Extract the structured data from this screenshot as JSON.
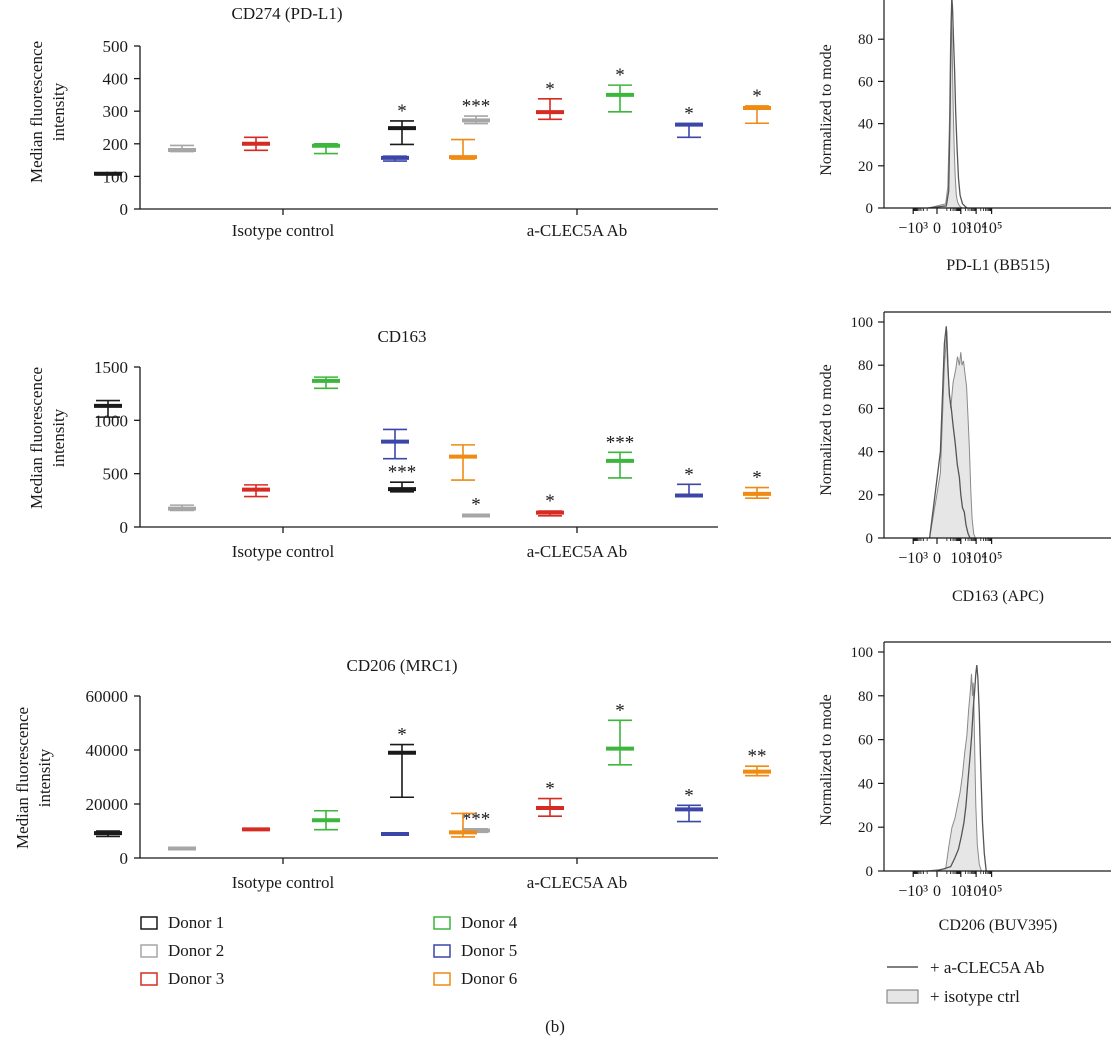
{
  "caption": "(b)",
  "palette": {
    "Donor 1": "#1a1a1a",
    "Donor 2": "#a6a6a6",
    "Donor 3": "#d62b22",
    "Donor 4": "#3cb63c",
    "Donor 5": "#3c46a8",
    "Donor 6": "#ef8a12",
    "histogram_line": "#555555",
    "histogram_fill": "#e6e6e6"
  },
  "box_legend": [
    "Donor 1",
    "Donor 2",
    "Donor 3",
    "Donor 4",
    "Donor 5",
    "Donor 6"
  ],
  "hist_legend": {
    "line": "+ a-CLEC5A Ab",
    "fill": "+ isotype ctrl"
  },
  "chart_data": [
    {
      "id": "cd274",
      "type": "box",
      "title": "CD274 (PD-L1)",
      "ylabel": [
        "Median fluorescence",
        "intensity"
      ],
      "categories": [
        "Isotype control",
        "a-CLEC5A Ab"
      ],
      "ylim": [
        0,
        500
      ],
      "yticks": [
        0,
        100,
        200,
        300,
        400,
        500
      ],
      "ytick_labels": [
        "0",
        "100",
        "200",
        "300",
        "400",
        "500"
      ],
      "series": [
        {
          "name": "Donor 1",
          "values": [
            {
              "min": 105,
              "median": 108,
              "max": 111,
              "sig": ""
            },
            {
              "min": 198,
              "median": 248,
              "max": 270,
              "sig": "*"
            }
          ]
        },
        {
          "name": "Donor 2",
          "values": [
            {
              "min": 176,
              "median": 181,
              "max": 195,
              "sig": ""
            },
            {
              "min": 262,
              "median": 272,
              "max": 285,
              "sig": "***"
            }
          ]
        },
        {
          "name": "Donor 3",
          "values": [
            {
              "min": 180,
              "median": 200,
              "max": 220,
              "sig": ""
            },
            {
              "min": 275,
              "median": 297,
              "max": 338,
              "sig": "*"
            }
          ]
        },
        {
          "name": "Donor 4",
          "values": [
            {
              "min": 170,
              "median": 194,
              "max": 200,
              "sig": ""
            },
            {
              "min": 298,
              "median": 350,
              "max": 380,
              "sig": "*"
            }
          ]
        },
        {
          "name": "Donor 5",
          "values": [
            {
              "min": 147,
              "median": 157,
              "max": 162,
              "sig": ""
            },
            {
              "min": 220,
              "median": 259,
              "max": 262,
              "sig": "*"
            }
          ]
        },
        {
          "name": "Donor 6",
          "values": [
            {
              "min": 153,
              "median": 159,
              "max": 213,
              "sig": ""
            },
            {
              "min": 263,
              "median": 310,
              "max": 316,
              "sig": "*"
            }
          ]
        }
      ]
    },
    {
      "id": "cd163",
      "type": "box",
      "title": "CD163",
      "ylabel": [
        "Median fluorescence",
        "intensity"
      ],
      "categories": [
        "Isotype control",
        "a-CLEC5A Ab"
      ],
      "ylim": [
        0,
        1500
      ],
      "yticks": [
        0,
        500,
        1000,
        1500
      ],
      "ytick_labels": [
        "0",
        "500",
        "1000",
        "1500"
      ],
      "series": [
        {
          "name": "Donor 1",
          "values": [
            {
              "min": 1030,
              "median": 1135,
              "max": 1185,
              "sig": ""
            },
            {
              "min": 330,
              "median": 355,
              "max": 420,
              "sig": "***"
            }
          ]
        },
        {
          "name": "Donor 2",
          "values": [
            {
              "min": 155,
              "median": 172,
              "max": 205,
              "sig": ""
            },
            {
              "min": 100,
              "median": 108,
              "max": 115,
              "sig": "*"
            }
          ]
        },
        {
          "name": "Donor 3",
          "values": [
            {
              "min": 285,
              "median": 350,
              "max": 395,
              "sig": ""
            },
            {
              "min": 105,
              "median": 135,
              "max": 150,
              "sig": "*"
            }
          ]
        },
        {
          "name": "Donor 4",
          "values": [
            {
              "min": 1300,
              "median": 1370,
              "max": 1405,
              "sig": ""
            },
            {
              "min": 460,
              "median": 620,
              "max": 700,
              "sig": "***"
            }
          ]
        },
        {
          "name": "Donor 5",
          "values": [
            {
              "min": 640,
              "median": 800,
              "max": 915,
              "sig": ""
            },
            {
              "min": 290,
              "median": 295,
              "max": 400,
              "sig": "*"
            }
          ]
        },
        {
          "name": "Donor 6",
          "values": [
            {
              "min": 440,
              "median": 660,
              "max": 770,
              "sig": ""
            },
            {
              "min": 270,
              "median": 310,
              "max": 370,
              "sig": "*"
            }
          ]
        }
      ]
    },
    {
      "id": "cd206",
      "type": "box",
      "title": "CD206 (MRC1)",
      "ylabel": [
        "Median fluorescence",
        "intensity"
      ],
      "categories": [
        "Isotype control",
        "a-CLEC5A Ab"
      ],
      "ylim": [
        0,
        60000
      ],
      "yticks": [
        0,
        20000,
        40000,
        60000
      ],
      "ytick_labels": [
        "0",
        "20000",
        "40000",
        "60000"
      ],
      "series": [
        {
          "name": "Donor 1",
          "values": [
            {
              "min": 8000,
              "median": 9200,
              "max": 10000,
              "sig": ""
            },
            {
              "min": 22500,
              "median": 39000,
              "max": 42000,
              "sig": "*"
            }
          ]
        },
        {
          "name": "Donor 2",
          "values": [
            {
              "min": 3200,
              "median": 3500,
              "max": 3800,
              "sig": ""
            },
            {
              "min": 9500,
              "median": 10200,
              "max": 10800,
              "sig": "***"
            }
          ]
        },
        {
          "name": "Donor 3",
          "values": [
            {
              "min": 10300,
              "median": 10600,
              "max": 11000,
              "sig": ""
            },
            {
              "min": 15500,
              "median": 18500,
              "max": 22000,
              "sig": "*"
            }
          ]
        },
        {
          "name": "Donor 4",
          "values": [
            {
              "min": 10500,
              "median": 14000,
              "max": 17500,
              "sig": ""
            },
            {
              "min": 34500,
              "median": 40500,
              "max": 51000,
              "sig": "*"
            }
          ]
        },
        {
          "name": "Donor 5",
          "values": [
            {
              "min": 8500,
              "median": 8900,
              "max": 9200,
              "sig": ""
            },
            {
              "min": 13500,
              "median": 18000,
              "max": 19500,
              "sig": "*"
            }
          ]
        },
        {
          "name": "Donor 6",
          "values": [
            {
              "min": 7800,
              "median": 9500,
              "max": 16500,
              "sig": ""
            },
            {
              "min": 30500,
              "median": 32000,
              "max": 34000,
              "sig": "**"
            }
          ]
        }
      ]
    },
    {
      "id": "hist-pdl1",
      "type": "area",
      "xlabel": "PD-L1 (BB515)",
      "ylabel": "Normalized to mode",
      "ylim": [
        0,
        100
      ],
      "yticks": [
        0,
        20,
        40,
        60,
        80
      ],
      "xtick_labels": [
        "−10³",
        "0",
        "10³",
        "10⁴",
        "10⁵"
      ],
      "series": [
        {
          "name": "+ isotype ctrl",
          "style": "filled",
          "x": [
            -80,
            80,
            120,
            160,
            190,
            220,
            250,
            300,
            350,
            420,
            500,
            600,
            800,
            1200
          ],
          "y": [
            0,
            2,
            10,
            40,
            75,
            90,
            80,
            50,
            30,
            15,
            6,
            3,
            1,
            0
          ]
        },
        {
          "name": "+ a-CLEC5A Ab",
          "style": "line",
          "x": [
            -80,
            90,
            140,
            180,
            210,
            240,
            270,
            320,
            380,
            450,
            560,
            700,
            900,
            1300,
            2500
          ],
          "y": [
            0,
            1,
            8,
            45,
            85,
            100,
            95,
            80,
            65,
            45,
            28,
            14,
            6,
            2,
            0
          ]
        }
      ]
    },
    {
      "id": "hist-cd163",
      "type": "area",
      "xlabel": "CD163 (APC)",
      "ylabel": "Normalized to mode",
      "ylim": [
        0,
        100
      ],
      "yticks": [
        0,
        20,
        40,
        60,
        80,
        100
      ],
      "xtick_labels": [
        "−10³",
        "0",
        "10³",
        "10⁴",
        "10⁵"
      ],
      "series": [
        {
          "name": "+ isotype ctrl",
          "style": "filled",
          "x": [
            -60,
            20,
            60,
            100,
            140,
            200,
            300,
            450,
            600,
            800,
            1000,
            1200,
            1500,
            1900,
            2400,
            3000,
            3700,
            4500,
            5500,
            7000,
            9000
          ],
          "y": [
            0,
            30,
            80,
            96,
            72,
            60,
            72,
            78,
            84,
            80,
            86,
            80,
            82,
            76,
            70,
            55,
            40,
            22,
            9,
            2,
            0
          ]
        },
        {
          "name": "+ a-CLEC5A Ab",
          "style": "line",
          "x": [
            -60,
            20,
            60,
            90,
            120,
            160,
            220,
            300,
            420,
            580,
            800,
            1000,
            1300,
            1700,
            2200,
            3000,
            4000
          ],
          "y": [
            0,
            40,
            90,
            98,
            80,
            66,
            60,
            52,
            44,
            34,
            28,
            20,
            14,
            12,
            6,
            2,
            0
          ]
        }
      ]
    },
    {
      "id": "hist-cd206",
      "type": "area",
      "xlabel": "CD206 (BUV395)",
      "ylabel": "Normalized to mode",
      "ylim": [
        0,
        100
      ],
      "yticks": [
        0,
        20,
        40,
        60,
        80,
        100
      ],
      "xtick_labels": [
        "−10³",
        "0",
        "10³",
        "10⁴",
        "10⁵"
      ],
      "series": [
        {
          "name": "+ isotype ctrl",
          "style": "filled",
          "x": [
            -100,
            80,
            150,
            250,
            400,
            600,
            900,
            1300,
            1800,
            2500,
            3300,
            4200,
            5000,
            5800,
            6500,
            7200,
            8000,
            9500,
            12000,
            16000,
            22000
          ],
          "y": [
            0,
            1,
            12,
            20,
            24,
            30,
            36,
            44,
            54,
            62,
            74,
            82,
            90,
            80,
            86,
            76,
            58,
            30,
            12,
            3,
            0
          ]
        },
        {
          "name": "+ a-CLEC5A Ab",
          "style": "line",
          "x": [
            0,
            200,
            400,
            700,
            1100,
            1600,
            2200,
            3000,
            4000,
            5200,
            6500,
            8000,
            9500,
            11000,
            13000,
            16000,
            20000,
            26000,
            34000,
            45000
          ],
          "y": [
            0,
            2,
            6,
            10,
            16,
            22,
            30,
            42,
            52,
            62,
            74,
            82,
            90,
            94,
            88,
            72,
            46,
            22,
            8,
            0
          ]
        }
      ]
    }
  ]
}
